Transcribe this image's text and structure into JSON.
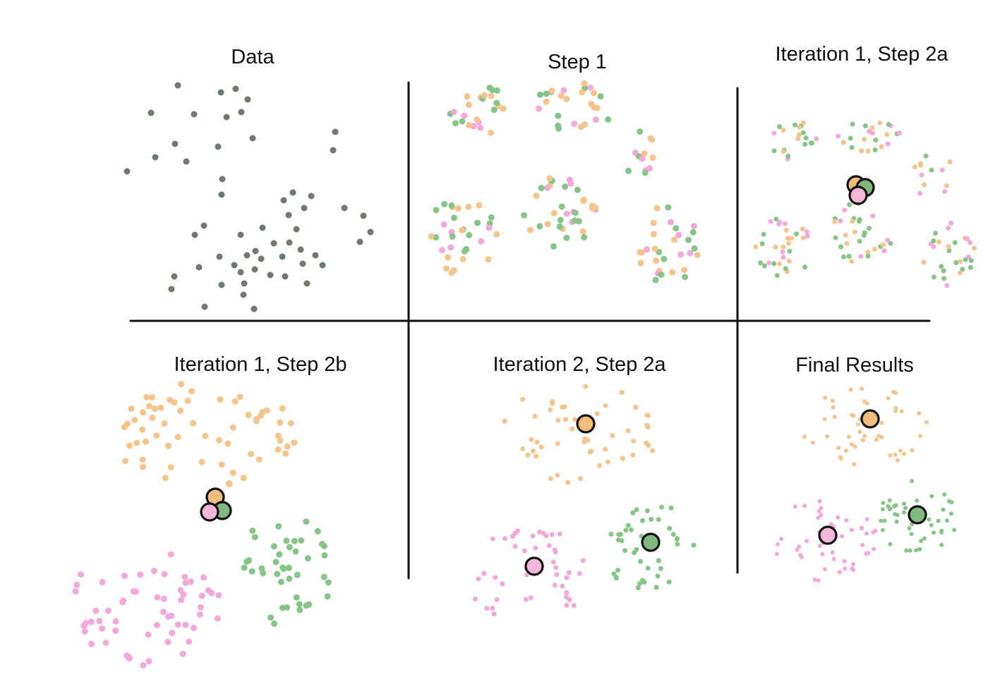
{
  "panels": [
    {
      "id": "data",
      "title": "Data"
    },
    {
      "id": "step1",
      "title": "Step 1"
    },
    {
      "id": "it1-2a",
      "title": "Iteration 1, Step 2a"
    },
    {
      "id": "it1-2b",
      "title": "Iteration 1, Step 2b"
    },
    {
      "id": "it2-2a",
      "title": "Iteration 2, Step 2a"
    },
    {
      "id": "final",
      "title": "Final Results"
    }
  ],
  "colors": {
    "unassigned": "#6f7a6f",
    "orange": "#f5c48c",
    "pink": "#f2a8d8",
    "green": "#86c487",
    "centroid_orange": "#f2bd7b",
    "centroid_pink": "#f4b6d9",
    "centroid_green": "#80b980",
    "stroke": "#111111"
  }
}
